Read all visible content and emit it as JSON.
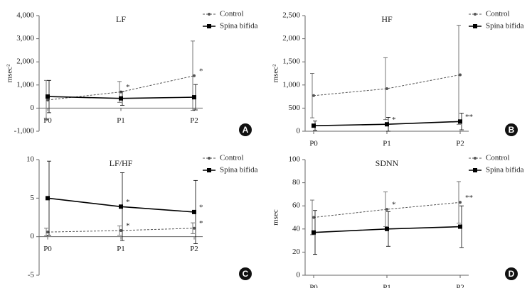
{
  "chart_data": [
    {
      "type": "line",
      "title": "LF",
      "y_label": "msec²",
      "panel_label": "A",
      "categories": [
        "P0",
        "P1",
        "P2"
      ],
      "ylim": [
        -1000,
        4000
      ],
      "yticks": [
        {
          "value": -1000,
          "label": "-1,000"
        },
        0,
        {
          "value": 1000,
          "label": "1,000"
        },
        {
          "value": 2000,
          "label": "2,000"
        },
        {
          "value": 3000,
          "label": "3,000"
        },
        {
          "value": 4000,
          "label": "4,000"
        }
      ],
      "series": [
        {
          "name": "Control",
          "color": "#555555",
          "line_style": "dashed",
          "marker": "circle",
          "values": [
            350,
            700,
            1400
          ],
          "errors": [
            850,
            450,
            1500
          ]
        },
        {
          "name": "Spina bifida",
          "color": "#000000",
          "line_style": "solid",
          "marker": "square",
          "values": [
            500,
            420,
            470
          ],
          "errors": [
            700,
            300,
            550
          ]
        }
      ],
      "annotations": [
        {
          "text": "*",
          "series": "Control",
          "x": "P1"
        },
        {
          "text": "*",
          "series": "Control",
          "x": "P2"
        }
      ]
    },
    {
      "type": "line",
      "title": "HF",
      "y_label": "msec²",
      "panel_label": "B",
      "categories": [
        "P0",
        "P1",
        "P2"
      ],
      "ylim": [
        0,
        2500
      ],
      "yticks": [
        0,
        500,
        {
          "value": 1000,
          "label": "1,000"
        },
        {
          "value": 1500,
          "label": "1,500"
        },
        {
          "value": 2000,
          "label": "2,000"
        },
        {
          "value": 2500,
          "label": "2,500"
        }
      ],
      "series": [
        {
          "name": "Control",
          "color": "#555555",
          "line_style": "dashed",
          "marker": "circle",
          "values": [
            770,
            920,
            1220
          ],
          "errors": [
            480,
            670,
            1070
          ]
        },
        {
          "name": "Spina bifida",
          "color": "#000000",
          "line_style": "solid",
          "marker": "square",
          "values": [
            120,
            150,
            210
          ],
          "errors": [
            100,
            150,
            180
          ]
        }
      ],
      "annotations": [
        {
          "text": "*",
          "series": "Spina bifida",
          "x": "P1"
        },
        {
          "text": "**",
          "series": "Spina bifida",
          "x": "P2"
        }
      ]
    },
    {
      "type": "line",
      "title": "LF/HF",
      "panel_label": "C",
      "categories": [
        "P0",
        "P1",
        "P2"
      ],
      "ylim": [
        -5,
        10
      ],
      "yticks": [
        -5,
        0,
        5,
        10
      ],
      "series": [
        {
          "name": "Control",
          "color": "#555555",
          "line_style": "dashed",
          "marker": "circle",
          "values": [
            0.6,
            0.8,
            1.1
          ],
          "errors": [
            0.5,
            0.6,
            0.7
          ]
        },
        {
          "name": "Spina bifida",
          "color": "#000000",
          "line_style": "solid",
          "marker": "square",
          "values": [
            5.0,
            3.9,
            3.2
          ],
          "errors": [
            4.8,
            4.4,
            4.1
          ]
        }
      ],
      "annotations": [
        {
          "text": "*",
          "series": "Control",
          "x": "P1"
        },
        {
          "text": "*",
          "series": "Control",
          "x": "P2"
        },
        {
          "text": "*",
          "series": "Spina bifida",
          "x": "P1"
        },
        {
          "text": "*",
          "series": "Spina bifida",
          "x": "P2"
        }
      ]
    },
    {
      "type": "line",
      "title": "SDNN",
      "y_label": "msec",
      "panel_label": "D",
      "categories": [
        "P0",
        "P1",
        "P2"
      ],
      "ylim": [
        0,
        100
      ],
      "yticks": [
        0,
        20,
        40,
        60,
        80,
        100
      ],
      "series": [
        {
          "name": "Control",
          "color": "#555555",
          "line_style": "dashed",
          "marker": "circle",
          "values": [
            50,
            57,
            63
          ],
          "errors": [
            15,
            15,
            18
          ]
        },
        {
          "name": "Spina bifida",
          "color": "#000000",
          "line_style": "solid",
          "marker": "square",
          "values": [
            37,
            40,
            42
          ],
          "errors": [
            19,
            15,
            18
          ]
        }
      ],
      "annotations": [
        {
          "text": "*",
          "series": "Control",
          "x": "P1"
        },
        {
          "text": "**",
          "series": "Control",
          "x": "P2"
        }
      ]
    }
  ]
}
